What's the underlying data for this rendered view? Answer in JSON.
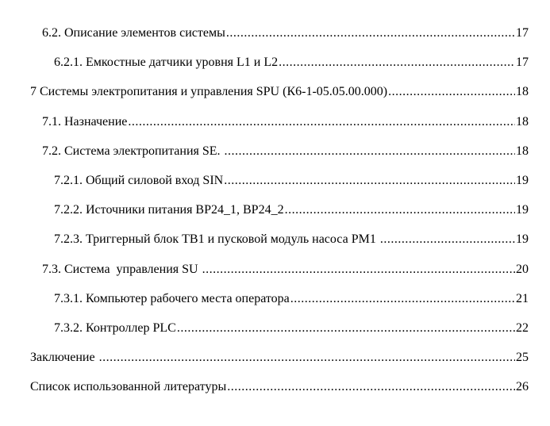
{
  "toc": [
    {
      "level": 1,
      "title": "6.2. Описание элементов системы",
      "page": "17"
    },
    {
      "level": 2,
      "title": "6.2.1. Емкостные датчики уровня L1 и L2",
      "page": "17"
    },
    {
      "level": 0,
      "title": "7 Системы электропитания и управления SPU (К6-1-05.05.00.000)",
      "page": "18"
    },
    {
      "level": 1,
      "title": "7.1. Назначение",
      "page": "18"
    },
    {
      "level": 1,
      "title": "7.2. Система электропитания SE. ",
      "page": "18"
    },
    {
      "level": 2,
      "title": "7.2.1. Общий силовой вход SIN",
      "page": "19"
    },
    {
      "level": 2,
      "title": "7.2.2. Источники питания BP24_1, BP24_2",
      "page": "19"
    },
    {
      "level": 2,
      "title": "7.2.3. Триггерный блок TB1 и пусковой модуль насоса PM1 ",
      "page": "19"
    },
    {
      "level": 1,
      "title": "7.3. Система  управления SU ",
      "page": "20"
    },
    {
      "level": 2,
      "title": "7.3.1. Компьютер рабочего места оператора",
      "page": "21"
    },
    {
      "level": 2,
      "title": "7.3.2. Контроллер PLC",
      "page": "22"
    },
    {
      "level": 0,
      "title": "Заключение ",
      "page": "25"
    },
    {
      "level": 0,
      "title": "Список использованной литературы",
      "page": "26"
    }
  ]
}
